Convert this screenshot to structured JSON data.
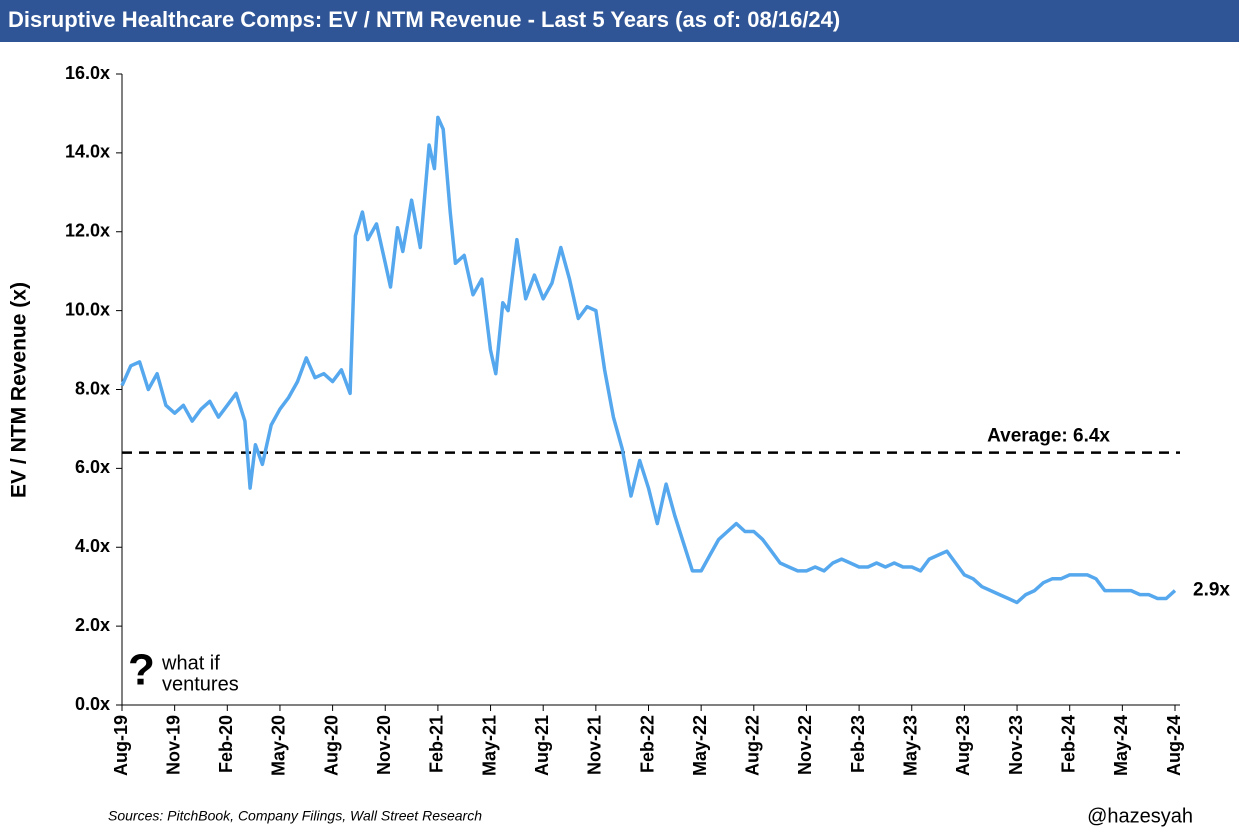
{
  "chart_data": {
    "type": "line",
    "title": "Disruptive Healthcare Comps: EV / NTM Revenue - Last 5 Years (as of: 08/16/24)",
    "ylabel": "EV / NTM Revenue (x)",
    "color": "#56a8ee",
    "xlim": [
      0,
      60
    ],
    "xticks": [
      {
        "value": 0,
        "label": "Aug-19"
      },
      {
        "value": 3,
        "label": "Nov-19"
      },
      {
        "value": 6,
        "label": "Feb-20"
      },
      {
        "value": 9,
        "label": "May-20"
      },
      {
        "value": 12,
        "label": "Aug-20"
      },
      {
        "value": 15,
        "label": "Nov-20"
      },
      {
        "value": 18,
        "label": "Feb-21"
      },
      {
        "value": 21,
        "label": "May-21"
      },
      {
        "value": 24,
        "label": "Aug-21"
      },
      {
        "value": 27,
        "label": "Nov-21"
      },
      {
        "value": 30,
        "label": "Feb-22"
      },
      {
        "value": 33,
        "label": "May-22"
      },
      {
        "value": 36,
        "label": "Aug-22"
      },
      {
        "value": 39,
        "label": "Nov-22"
      },
      {
        "value": 42,
        "label": "Feb-23"
      },
      {
        "value": 45,
        "label": "May-23"
      },
      {
        "value": 48,
        "label": "Aug-23"
      },
      {
        "value": 51,
        "label": "Nov-23"
      },
      {
        "value": 54,
        "label": "Feb-24"
      },
      {
        "value": 57,
        "label": "May-24"
      },
      {
        "value": 60,
        "label": "Aug-24"
      }
    ],
    "ylim": [
      0,
      16
    ],
    "yticks": [
      {
        "value": 0,
        "label": "0.0x"
      },
      {
        "value": 2,
        "label": "2.0x"
      },
      {
        "value": 4,
        "label": "4.0x"
      },
      {
        "value": 6,
        "label": "6.0x"
      },
      {
        "value": 8,
        "label": "8.0x"
      },
      {
        "value": 10,
        "label": "10.0x"
      },
      {
        "value": 12,
        "label": "12.0x"
      },
      {
        "value": 14,
        "label": "14.0x"
      },
      {
        "value": 16,
        "label": "16.0x"
      }
    ],
    "x": [
      0,
      0.5,
      1,
      1.5,
      2,
      2.5,
      3,
      3.5,
      4,
      4.5,
      5,
      5.5,
      6,
      6.5,
      7,
      7.3,
      7.6,
      8,
      8.5,
      9,
      9.5,
      10,
      10.5,
      11,
      11.5,
      12,
      12.5,
      13,
      13.3,
      13.7,
      14,
      14.5,
      15,
      15.3,
      15.7,
      16,
      16.5,
      17,
      17.5,
      17.8,
      18,
      18.3,
      18.7,
      19,
      19.5,
      20,
      20.5,
      21,
      21.3,
      21.7,
      22,
      22.5,
      23,
      23.5,
      24,
      24.5,
      25,
      25.5,
      26,
      26.5,
      27,
      27.5,
      28,
      28.5,
      29,
      29.5,
      30,
      30.5,
      31,
      31.5,
      32,
      32.5,
      33,
      33.5,
      34,
      34.5,
      35,
      35.5,
      36,
      36.5,
      37,
      37.5,
      38,
      38.5,
      39,
      39.5,
      40,
      40.5,
      41,
      41.5,
      42,
      42.5,
      43,
      43.5,
      44,
      44.5,
      45,
      45.5,
      46,
      46.5,
      47,
      47.5,
      48,
      48.5,
      49,
      49.5,
      50,
      50.5,
      51,
      51.5,
      52,
      52.5,
      53,
      53.5,
      54,
      54.5,
      55,
      55.5,
      56,
      56.5,
      57,
      57.5,
      58,
      58.5,
      59,
      59.5,
      60
    ],
    "values": [
      8.1,
      8.6,
      8.7,
      8.0,
      8.4,
      7.6,
      7.4,
      7.6,
      7.2,
      7.5,
      7.7,
      7.3,
      7.6,
      7.9,
      7.2,
      5.5,
      6.6,
      6.1,
      7.1,
      7.5,
      7.8,
      8.2,
      8.8,
      8.3,
      8.4,
      8.2,
      8.5,
      7.9,
      11.9,
      12.5,
      11.8,
      12.2,
      11.2,
      10.6,
      12.1,
      11.5,
      12.8,
      11.6,
      14.2,
      13.6,
      14.9,
      14.6,
      12.5,
      11.2,
      11.4,
      10.4,
      10.8,
      9.0,
      8.4,
      10.2,
      10.0,
      11.8,
      10.3,
      10.9,
      10.3,
      10.7,
      11.6,
      10.8,
      9.8,
      10.1,
      10.0,
      8.5,
      7.3,
      6.5,
      5.3,
      6.2,
      5.5,
      4.6,
      5.6,
      4.8,
      4.1,
      3.4,
      3.4,
      3.8,
      4.2,
      4.4,
      4.6,
      4.4,
      4.4,
      4.2,
      3.9,
      3.6,
      3.5,
      3.4,
      3.4,
      3.5,
      3.4,
      3.6,
      3.7,
      3.6,
      3.5,
      3.5,
      3.6,
      3.5,
      3.6,
      3.5,
      3.5,
      3.4,
      3.7,
      3.8,
      3.9,
      3.6,
      3.3,
      3.2,
      3.0,
      2.9,
      2.8,
      2.7,
      2.6,
      2.8,
      2.9,
      3.1,
      3.2,
      3.2,
      3.3,
      3.3,
      3.3,
      3.2,
      2.9,
      2.9,
      2.9,
      2.9,
      2.8,
      2.8,
      2.7,
      2.7,
      2.9
    ],
    "end_label": "2.9x",
    "average": {
      "value": 6.4,
      "label": "Average: 6.4x"
    }
  },
  "logo": {
    "symbol": "?",
    "line1": "what if",
    "line2": "ventures"
  },
  "footer": {
    "source": "Sources: PitchBook, Company Filings, Wall Street Research",
    "handle": "@hazesyah"
  }
}
